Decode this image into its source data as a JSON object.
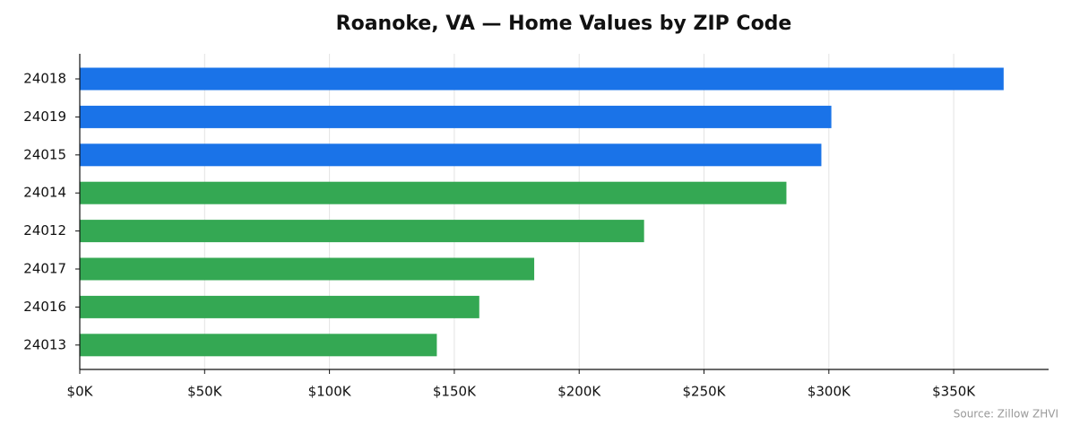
{
  "chart_data": {
    "type": "barh",
    "title": "Roanoke, VA — Home Values by ZIP Code",
    "categories": [
      "24018",
      "24019",
      "24015",
      "24014",
      "24012",
      "24017",
      "24016",
      "24013"
    ],
    "values": [
      370000,
      301000,
      297000,
      283000,
      226000,
      182000,
      160000,
      143000
    ],
    "colors": [
      "#1a73e8",
      "#1a73e8",
      "#1a73e8",
      "#34a853",
      "#34a853",
      "#34a853",
      "#34a853",
      "#34a853"
    ],
    "xlim": [
      0,
      388000
    ],
    "xticks": [
      {
        "value": 0,
        "label": "$0K"
      },
      {
        "value": 50000,
        "label": "$50K"
      },
      {
        "value": 100000,
        "label": "$100K"
      },
      {
        "value": 150000,
        "label": "$150K"
      },
      {
        "value": 200000,
        "label": "$200K"
      },
      {
        "value": 250000,
        "label": "$250K"
      },
      {
        "value": 300000,
        "label": "$300K"
      },
      {
        "value": 350000,
        "label": "$350K"
      }
    ],
    "grid": true,
    "source": "Source: Zillow ZHVI"
  }
}
